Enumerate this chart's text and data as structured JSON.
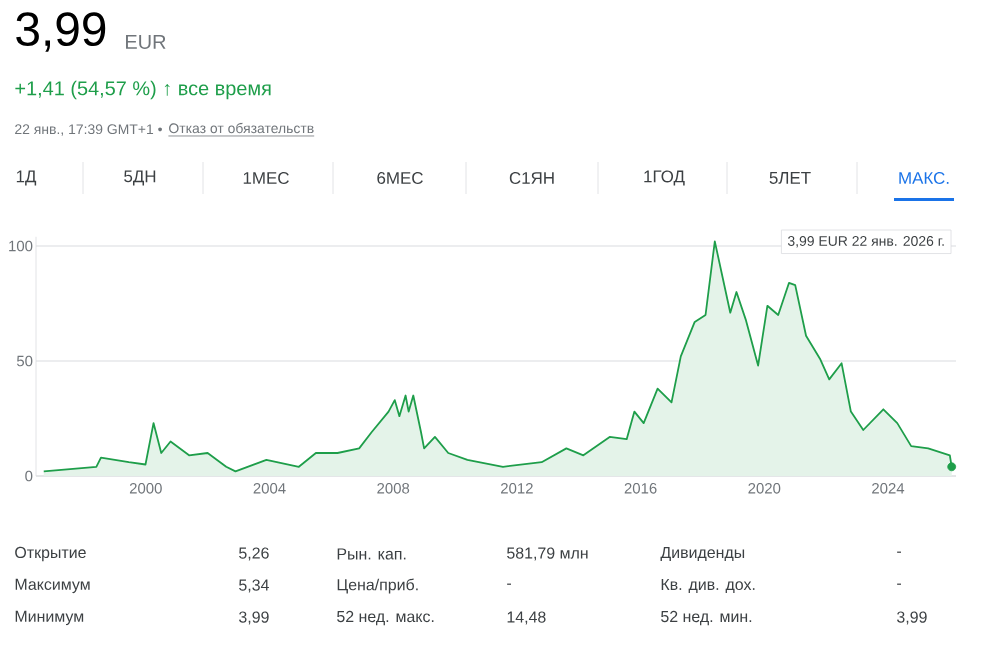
{
  "chart_data": {
    "type": "area",
    "title": "3,99",
    "subtitle": "+1,41 (54,57 %) ↑ все время",
    "annotations": [
      "EUR",
      "22 янв., 17:39 GMT+1 •",
      "Отказ от обязательств",
      "1Д",
      "5ДН",
      "1МЕС",
      "6МЕС",
      "С1ЯН",
      "1ГОД",
      "5ЛЕТ",
      "МАКС.",
      "3,99 EUR  22 янв. 2026 г.",
      "Открытие",
      "5,26",
      "Рын. кап.",
      "581,79 млн",
      "Дивиденды",
      "-",
      "Максимум",
      "5,34",
      "Цена/приб.",
      "-",
      "Кв. див. дох.",
      "-",
      "Минимум",
      "3,99",
      "52 нед. макс.",
      "14,48",
      "52 нед. мин.",
      "3,99"
    ],
    "x": [
      1996.7,
      1998.4,
      1998.55,
      1999.45,
      1999.99,
      2000.25,
      2000.5,
      2000.8,
      2001.4,
      2002.0,
      2002.6,
      2002.9,
      2003.9,
      2004.95,
      2005.5,
      2006.2,
      2006.9,
      2007.3,
      2007.85,
      2008.05,
      2008.2,
      2008.4,
      2008.5,
      2008.65,
      2008.9,
      2009.0,
      2009.35,
      2009.78,
      2010.4,
      2011.55,
      2012.8,
      2013.6,
      2014.15,
      2015.0,
      2015.55,
      2015.8,
      2016.1,
      2016.55,
      2017.0,
      2017.3,
      2017.75,
      2018.1,
      2018.4,
      2018.9,
      2019.1,
      2019.4,
      2019.8,
      2020.1,
      2020.45,
      2020.8,
      2021.0,
      2021.35,
      2021.8,
      2022.1,
      2022.5,
      2022.8,
      2023.2,
      2023.85,
      2024.3,
      2024.75,
      2025.3,
      2026.0,
      2026.06
    ],
    "values": [
      2,
      4,
      8,
      6,
      5,
      23,
      10,
      15,
      9,
      10,
      4,
      2,
      7,
      4,
      10,
      10,
      12,
      19,
      28,
      33,
      26,
      35,
      28,
      35,
      19,
      12,
      17,
      10,
      7,
      4,
      6,
      12,
      9,
      17,
      16,
      28,
      23,
      38,
      32,
      52,
      67,
      70,
      102,
      71,
      80,
      68,
      48,
      74,
      70,
      84,
      83,
      61,
      51,
      42,
      49,
      28,
      20,
      29,
      23,
      13,
      12,
      9,
      4
    ],
    "color": "#1e9e4a",
    "xlim": [
      1996.45,
      2026.2
    ],
    "ylim": [
      0,
      104
    ],
    "xticks": [
      2000,
      2004,
      2008,
      2012,
      2016,
      2020,
      2024
    ],
    "yticks": [
      0,
      50,
      100
    ],
    "grid": "y"
  }
}
